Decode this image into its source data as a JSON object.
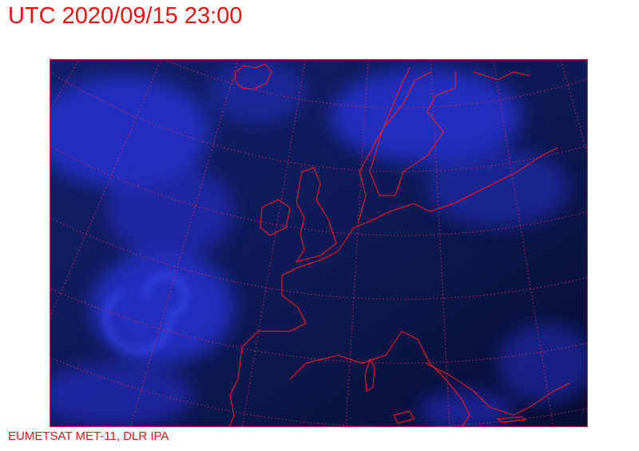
{
  "header": {
    "title": "UTC 2020/09/15 23:00"
  },
  "footer": {
    "credit": "EUMETSAT MET-11, DLR IPA"
  },
  "map": {
    "imagery": "satellite infrared (night), Europe and North Atlantic",
    "colors": {
      "background_dark": "#0a1440",
      "cloud": "#2a36e0",
      "coastline": "#ff1a1a",
      "graticule": "#d02a5a",
      "text": "#ee1111"
    }
  }
}
